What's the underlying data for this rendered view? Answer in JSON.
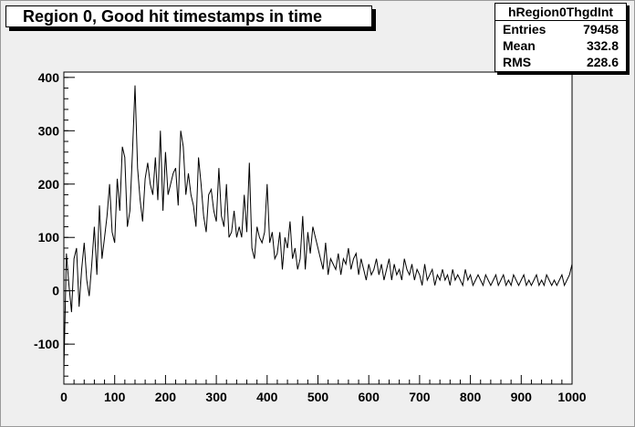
{
  "title": "Region 0, Good hit timestamps in time",
  "stats": {
    "name": "hRegion0ThgdInt",
    "rows": [
      {
        "key": "Entries",
        "value": "79458"
      },
      {
        "key": "Mean",
        "value": "332.8"
      },
      {
        "key": "RMS",
        "value": "228.6"
      }
    ]
  },
  "chart_data": {
    "type": "line",
    "title": "Region 0, Good hit timestamps in time",
    "xlabel": "",
    "ylabel": "",
    "xlim": [
      0,
      1000
    ],
    "ylim": [
      -175,
      410
    ],
    "x_ticks": [
      0,
      100,
      200,
      300,
      400,
      500,
      600,
      700,
      800,
      900,
      1000
    ],
    "y_ticks": [
      -100,
      0,
      100,
      200,
      300,
      400
    ],
    "grid": false,
    "legend": "none",
    "colors": {
      "line": "#000000",
      "plot_bg": "#ffffff",
      "canvas_bg": "#efefef"
    },
    "series": [
      {
        "x_start": 0,
        "x_step": 5,
        "values": [
          -150,
          70,
          10,
          -40,
          60,
          80,
          -30,
          40,
          90,
          20,
          -10,
          50,
          120,
          30,
          160,
          60,
          100,
          140,
          200,
          110,
          90,
          210,
          150,
          270,
          250,
          120,
          150,
          260,
          385,
          230,
          170,
          130,
          210,
          240,
          200,
          180,
          250,
          170,
          300,
          150,
          260,
          180,
          200,
          220,
          230,
          160,
          300,
          270,
          180,
          220,
          180,
          160,
          120,
          250,
          200,
          140,
          110,
          180,
          190,
          150,
          130,
          230,
          140,
          120,
          200,
          100,
          110,
          150,
          100,
          120,
          100,
          180,
          110,
          240,
          80,
          60,
          120,
          100,
          90,
          110,
          200,
          90,
          110,
          60,
          70,
          110,
          40,
          100,
          80,
          130,
          60,
          80,
          40,
          60,
          140,
          40,
          110,
          70,
          120,
          100,
          80,
          60,
          40,
          90,
          30,
          60,
          50,
          40,
          70,
          30,
          60,
          50,
          80,
          40,
          60,
          70,
          30,
          60,
          40,
          20,
          50,
          30,
          40,
          60,
          30,
          50,
          20,
          40,
          60,
          20,
          50,
          30,
          40,
          20,
          60,
          40,
          30,
          50,
          20,
          40,
          30,
          10,
          50,
          20,
          30,
          40,
          10,
          30,
          20,
          40,
          20,
          30,
          10,
          40,
          20,
          30,
          20,
          10,
          40,
          20,
          30,
          10,
          20,
          30,
          20,
          10,
          30,
          20,
          10,
          20,
          30,
          10,
          20,
          30,
          10,
          20,
          10,
          30,
          20,
          10,
          20,
          30,
          10,
          20,
          10,
          20,
          30,
          10,
          20,
          10,
          30,
          20,
          10,
          20,
          10,
          20,
          30,
          10,
          20,
          30,
          50
        ]
      }
    ]
  }
}
